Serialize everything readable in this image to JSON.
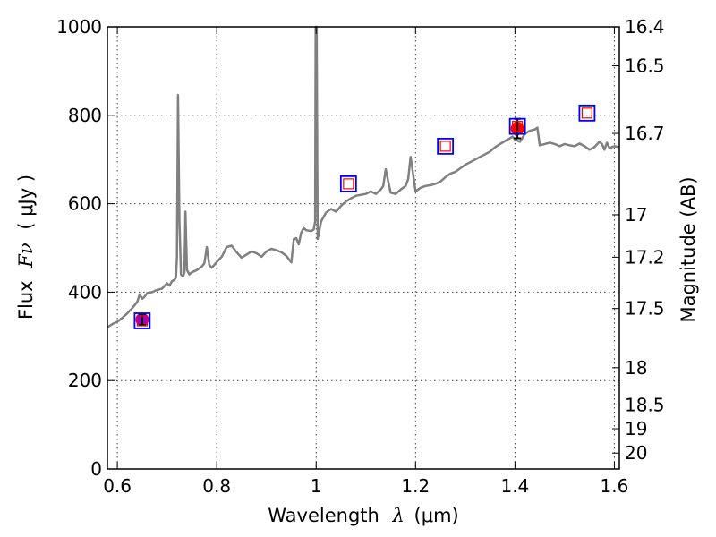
{
  "chart_data": {
    "type": "line",
    "xlabel": "Wavelength",
    "xlabel_symbol": "λ",
    "xlabel_unit": "(μm)",
    "ylabel": "Flux",
    "ylabel_symbol": "Fν",
    "ylabel_unit": "( μJy )",
    "ylabel_right": "Magnitude (AB)",
    "xlim": [
      0.58,
      1.61
    ],
    "ylim": [
      0,
      1000
    ],
    "grid": true,
    "x_ticks": [
      0.6,
      0.8,
      1.0,
      1.2,
      1.4,
      1.6
    ],
    "x_tick_labels": [
      "0.6",
      "0.8",
      "1",
      "1.2",
      "1.4",
      "1.6"
    ],
    "y_ticks": [
      0,
      200,
      400,
      600,
      800,
      1000
    ],
    "y_tick_labels": [
      "0",
      "200",
      "400",
      "600",
      "800",
      "1000"
    ],
    "right_ticks": [
      {
        "label": "16.4",
        "flux": 1000
      },
      {
        "label": "16.5",
        "flux": 912
      },
      {
        "label": "16.7",
        "flux": 759
      },
      {
        "label": "17",
        "flux": 575
      },
      {
        "label": "17.2",
        "flux": 479
      },
      {
        "label": "17.5",
        "flux": 363
      },
      {
        "label": "18",
        "flux": 229
      },
      {
        "label": "18.5",
        "flux": 145
      },
      {
        "label": "19",
        "flux": 91
      },
      {
        "label": "20",
        "flux": 36
      }
    ],
    "series": [
      {
        "name": "spectrum",
        "color": "#808080",
        "points": [
          [
            0.58,
            320
          ],
          [
            0.59,
            328
          ],
          [
            0.6,
            333
          ],
          [
            0.61,
            342
          ],
          [
            0.62,
            352
          ],
          [
            0.63,
            364
          ],
          [
            0.64,
            378
          ],
          [
            0.645,
            395
          ],
          [
            0.65,
            385
          ],
          [
            0.655,
            390
          ],
          [
            0.66,
            398
          ],
          [
            0.67,
            400
          ],
          [
            0.68,
            405
          ],
          [
            0.69,
            408
          ],
          [
            0.7,
            420
          ],
          [
            0.705,
            415
          ],
          [
            0.71,
            425
          ],
          [
            0.715,
            428
          ],
          [
            0.718,
            433
          ],
          [
            0.72,
            480
          ],
          [
            0.722,
            846
          ],
          [
            0.725,
            560
          ],
          [
            0.728,
            440
          ],
          [
            0.732,
            435
          ],
          [
            0.735,
            445
          ],
          [
            0.737,
            582
          ],
          [
            0.74,
            450
          ],
          [
            0.745,
            440
          ],
          [
            0.75,
            445
          ],
          [
            0.76,
            450
          ],
          [
            0.77,
            458
          ],
          [
            0.775,
            465
          ],
          [
            0.78,
            502
          ],
          [
            0.785,
            462
          ],
          [
            0.79,
            455
          ],
          [
            0.8,
            468
          ],
          [
            0.81,
            480
          ],
          [
            0.82,
            502
          ],
          [
            0.83,
            505
          ],
          [
            0.84,
            490
          ],
          [
            0.85,
            478
          ],
          [
            0.86,
            485
          ],
          [
            0.87,
            492
          ],
          [
            0.88,
            488
          ],
          [
            0.89,
            480
          ],
          [
            0.9,
            492
          ],
          [
            0.91,
            498
          ],
          [
            0.92,
            495
          ],
          [
            0.93,
            490
          ],
          [
            0.94,
            482
          ],
          [
            0.95,
            467
          ],
          [
            0.955,
            520
          ],
          [
            0.96,
            522
          ],
          [
            0.965,
            508
          ],
          [
            0.97,
            535
          ],
          [
            0.975,
            545
          ],
          [
            0.98,
            540
          ],
          [
            0.99,
            538
          ],
          [
            0.995,
            542
          ],
          [
            0.998,
            560
          ],
          [
            0.999,
            1000
          ],
          [
            1.001,
            1000
          ],
          [
            1.003,
            520
          ],
          [
            1.01,
            560
          ],
          [
            1.02,
            580
          ],
          [
            1.03,
            588
          ],
          [
            1.04,
            582
          ],
          [
            1.05,
            595
          ],
          [
            1.06,
            605
          ],
          [
            1.07,
            612
          ],
          [
            1.08,
            618
          ],
          [
            1.09,
            620
          ],
          [
            1.1,
            622
          ],
          [
            1.11,
            628
          ],
          [
            1.12,
            622
          ],
          [
            1.13,
            632
          ],
          [
            1.135,
            640
          ],
          [
            1.14,
            678
          ],
          [
            1.145,
            650
          ],
          [
            1.15,
            625
          ],
          [
            1.16,
            622
          ],
          [
            1.17,
            632
          ],
          [
            1.18,
            640
          ],
          [
            1.185,
            655
          ],
          [
            1.19,
            706
          ],
          [
            1.195,
            668
          ],
          [
            1.2,
            628
          ],
          [
            1.21,
            636
          ],
          [
            1.22,
            640
          ],
          [
            1.23,
            642
          ],
          [
            1.24,
            645
          ],
          [
            1.25,
            650
          ],
          [
            1.26,
            660
          ],
          [
            1.27,
            668
          ],
          [
            1.28,
            672
          ],
          [
            1.29,
            680
          ],
          [
            1.3,
            688
          ],
          [
            1.31,
            694
          ],
          [
            1.32,
            700
          ],
          [
            1.33,
            706
          ],
          [
            1.34,
            712
          ],
          [
            1.35,
            718
          ],
          [
            1.36,
            728
          ],
          [
            1.37,
            735
          ],
          [
            1.38,
            742
          ],
          [
            1.39,
            748
          ],
          [
            1.395,
            752
          ],
          [
            1.4,
            745
          ],
          [
            1.41,
            740
          ],
          [
            1.42,
            758
          ],
          [
            1.43,
            765
          ],
          [
            1.44,
            768
          ],
          [
            1.445,
            772
          ],
          [
            1.45,
            732
          ],
          [
            1.46,
            735
          ],
          [
            1.47,
            738
          ],
          [
            1.48,
            735
          ],
          [
            1.49,
            730
          ],
          [
            1.5,
            735
          ],
          [
            1.51,
            732
          ],
          [
            1.52,
            730
          ],
          [
            1.53,
            736
          ],
          [
            1.54,
            730
          ],
          [
            1.55,
            722
          ],
          [
            1.56,
            728
          ],
          [
            1.57,
            740
          ],
          [
            1.575,
            735
          ],
          [
            1.58,
            722
          ],
          [
            1.585,
            738
          ],
          [
            1.59,
            726
          ],
          [
            1.6,
            730
          ],
          [
            1.61,
            728
          ]
        ]
      }
    ],
    "model_points": [
      {
        "x": 0.65,
        "y": 335
      },
      {
        "x": 1.065,
        "y": 645
      },
      {
        "x": 1.26,
        "y": 730
      },
      {
        "x": 1.405,
        "y": 775
      },
      {
        "x": 1.545,
        "y": 805
      }
    ],
    "observed_points": [
      {
        "x": 0.65,
        "y": 338,
        "err": 12,
        "color": "#9900cc"
      },
      {
        "x": 1.405,
        "y": 770,
        "err": 22,
        "color": "#ff0000"
      }
    ],
    "colors": {
      "spectrum": "#808080",
      "model_outer": "#0000ff",
      "model_inner": "#ff0000",
      "error_bar": "#000000"
    }
  }
}
